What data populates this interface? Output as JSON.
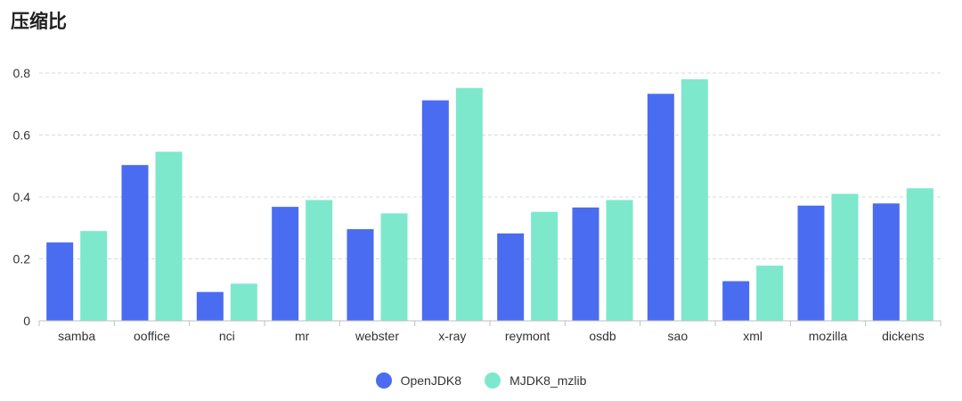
{
  "chart_data": {
    "type": "bar",
    "title": "压缩比",
    "xlabel": "",
    "ylabel": "",
    "ylim": [
      0,
      0.8
    ],
    "yticks": [
      "0",
      "0.2",
      "0.4",
      "0.6",
      "0.8"
    ],
    "grid": true,
    "legend_position": "bottom-center",
    "categories": [
      "samba",
      "ooffice",
      "nci",
      "mr",
      "webster",
      "x-ray",
      "reymont",
      "osdb",
      "sao",
      "xml",
      "mozilla",
      "dickens"
    ],
    "series": [
      {
        "name": "OpenJDK8",
        "color": "#4a6cf0",
        "values": [
          0.253,
          0.503,
          0.093,
          0.368,
          0.296,
          0.712,
          0.282,
          0.366,
          0.733,
          0.128,
          0.372,
          0.379
        ]
      },
      {
        "name": "MJDK8_mzlib",
        "color": "#7de8cc",
        "values": [
          0.29,
          0.546,
          0.12,
          0.39,
          0.347,
          0.752,
          0.352,
          0.39,
          0.78,
          0.178,
          0.41,
          0.428
        ]
      }
    ]
  }
}
